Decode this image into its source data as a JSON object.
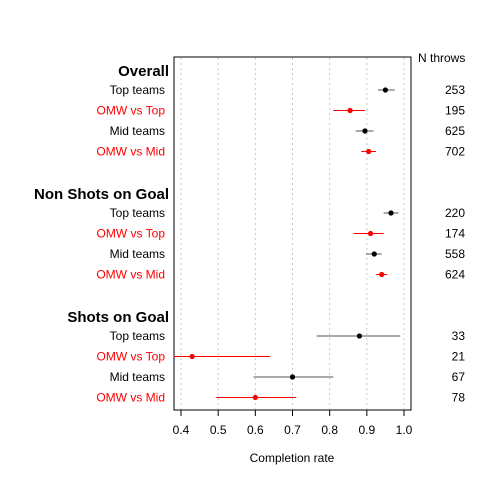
{
  "chart_data": {
    "type": "scatter",
    "subtype": "forest-plot",
    "title": "",
    "xlabel": "Completion rate",
    "ylabel": "",
    "xlim": [
      0.38,
      1.02
    ],
    "xticks": [
      "0.4",
      "0.5",
      "0.6",
      "0.7",
      "0.8",
      "0.9",
      "1.0"
    ],
    "grid": "vertical-dotted",
    "count_header": "N throws",
    "colors": {
      "team": "#000000",
      "omw": "#ff0000",
      "ci_team": "#555555",
      "grid": "#c8c8c8"
    },
    "groups": [
      {
        "name": "Overall",
        "rows": [
          {
            "label": "Top teams",
            "style": "team",
            "estimate": 0.95,
            "lo": 0.93,
            "hi": 0.975,
            "n": "253"
          },
          {
            "label": "OMW vs Top",
            "style": "omw",
            "estimate": 0.855,
            "lo": 0.81,
            "hi": 0.895,
            "n": "195"
          },
          {
            "label": "Mid teams",
            "style": "team",
            "estimate": 0.895,
            "lo": 0.87,
            "hi": 0.918,
            "n": "625"
          },
          {
            "label": "OMW vs Mid",
            "style": "omw",
            "estimate": 0.905,
            "lo": 0.885,
            "hi": 0.925,
            "n": "702"
          }
        ]
      },
      {
        "name": "Non Shots on Goal",
        "rows": [
          {
            "label": "Top teams",
            "style": "team",
            "estimate": 0.965,
            "lo": 0.945,
            "hi": 0.985,
            "n": "220"
          },
          {
            "label": "OMW vs Top",
            "style": "omw",
            "estimate": 0.91,
            "lo": 0.865,
            "hi": 0.945,
            "n": "174"
          },
          {
            "label": "Mid teams",
            "style": "team",
            "estimate": 0.92,
            "lo": 0.898,
            "hi": 0.94,
            "n": "558"
          },
          {
            "label": "OMW vs Mid",
            "style": "omw",
            "estimate": 0.94,
            "lo": 0.925,
            "hi": 0.955,
            "n": "624"
          }
        ]
      },
      {
        "name": "Shots on Goal",
        "rows": [
          {
            "label": "Top teams",
            "style": "team",
            "estimate": 0.88,
            "lo": 0.765,
            "hi": 0.99,
            "n": "33"
          },
          {
            "label": "OMW vs Top",
            "style": "omw",
            "estimate": 0.43,
            "lo": 0.38,
            "hi": 0.64,
            "n": "21"
          },
          {
            "label": "Mid teams",
            "style": "team",
            "estimate": 0.7,
            "lo": 0.595,
            "hi": 0.81,
            "n": "67"
          },
          {
            "label": "OMW vs Mid",
            "style": "omw",
            "estimate": 0.6,
            "lo": 0.495,
            "hi": 0.71,
            "n": "78"
          }
        ]
      }
    ]
  }
}
